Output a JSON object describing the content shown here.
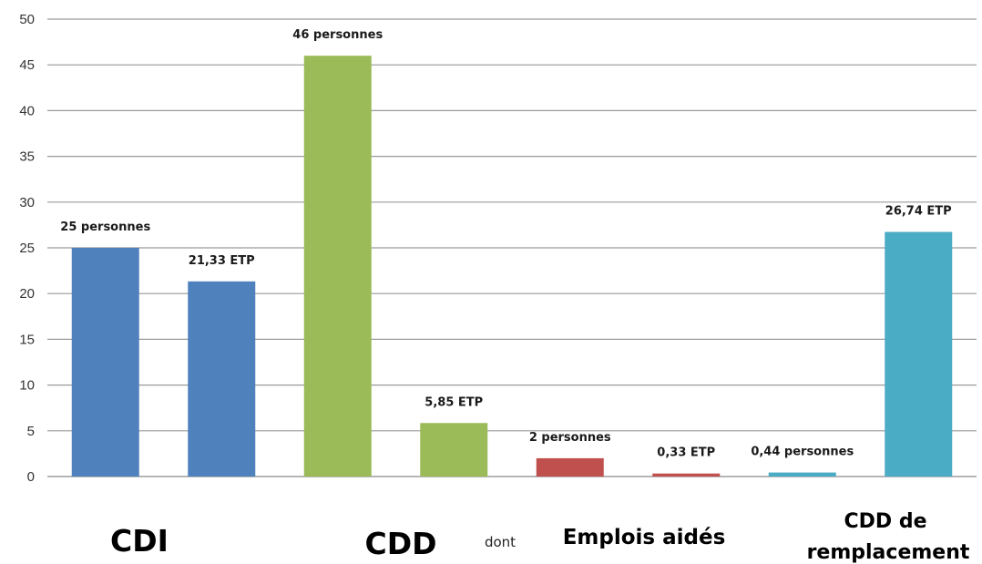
{
  "chart_data": {
    "type": "bar",
    "ylim": [
      0,
      50
    ],
    "yticks": [
      0,
      5,
      10,
      15,
      20,
      25,
      30,
      35,
      40,
      45,
      50
    ],
    "grid": true,
    "bars": [
      {
        "value": 25,
        "label": "25 personnes",
        "color": "#4f81bd"
      },
      {
        "value": 21.33,
        "label": "21,33 ETP",
        "color": "#4f81bd"
      },
      {
        "value": 46,
        "label": "46 personnes",
        "color": "#9bbb59"
      },
      {
        "value": 5.85,
        "label": "5,85 ETP",
        "color": "#9bbb59"
      },
      {
        "value": 2,
        "label": "2 personnes",
        "color": "#c0504d"
      },
      {
        "value": 0.33,
        "label": "0,33 ETP",
        "color": "#c0504d"
      },
      {
        "value": 0.44,
        "label": "0,44 personnes",
        "color": "#4bacc6"
      },
      {
        "value": 26.74,
        "label": "26,74 ETP",
        "color": "#4bacc6"
      }
    ],
    "categories": [
      {
        "text": "CDI",
        "size": "big"
      },
      {
        "text": "CDD",
        "size": "big"
      },
      {
        "text": "dont",
        "size": "small"
      },
      {
        "text": "Emplois aidés",
        "size": "medium"
      },
      {
        "text": "CDD de",
        "size": "medium"
      },
      {
        "text": "remplacement",
        "size": "medium"
      }
    ]
  }
}
